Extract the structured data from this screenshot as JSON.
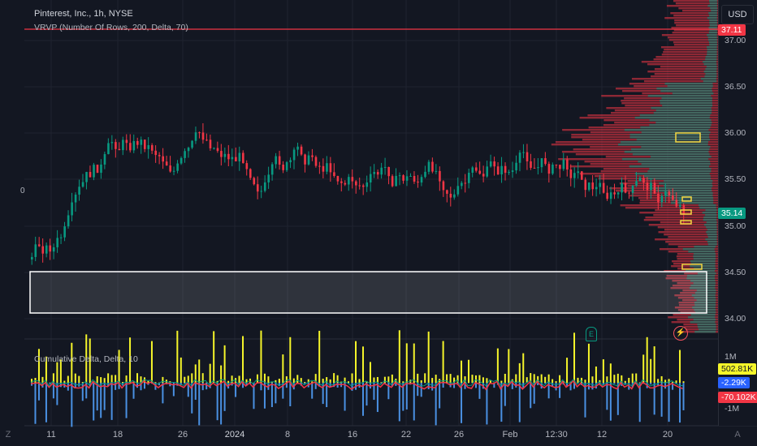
{
  "header": {
    "symbol_title": "Pinterest, Inc., 1h, NYSE",
    "vrvp_label": "VRVP (Number Of Rows, 200, Delta, 70)",
    "cumdelta_label": "Cumulative Delta, Delta, 10",
    "left_zero": "0"
  },
  "price_axis": {
    "currency_button": "USD",
    "labels": [
      "37.00",
      "36.50",
      "36.00",
      "35.50",
      "35.00",
      "34.50",
      "34.00"
    ],
    "hline_tag": "37.11",
    "last_price_tag": "35.14",
    "last_price_color": "#089981",
    "hline_color": "#f23645"
  },
  "delta_axis": {
    "labels": [
      "1M",
      "-1M"
    ],
    "tag_high": "502.81K",
    "tag_mid": "-2.29K",
    "tag_low": "-70.102K",
    "tag_high_color": "#f5f52a",
    "tag_mid_color": "#2962ff",
    "tag_low_color": "#f23645"
  },
  "time_axis": {
    "labels": [
      "11",
      "18",
      "26",
      "2024",
      "8",
      "16",
      "22",
      "26",
      "Feb",
      "12:30",
      "12",
      "20"
    ],
    "corner_left": "Z",
    "corner_right": "A"
  },
  "markers": {
    "earnings_letter": "E",
    "flash_icon": "lightning-icon"
  },
  "colors": {
    "bg": "#131722",
    "up": "#089981",
    "down": "#f23645",
    "volume_up": "#f5f52a",
    "volume_down": "#2962ff"
  }
}
